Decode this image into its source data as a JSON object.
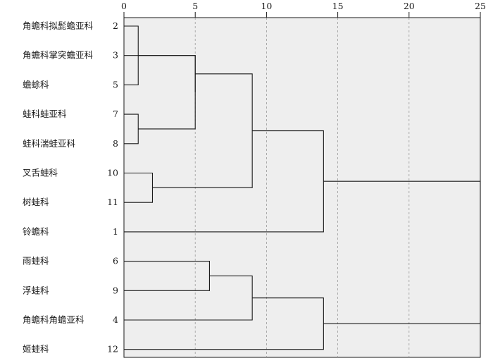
{
  "chart_data": {
    "type": "dendrogram",
    "title": "",
    "xlabel": "",
    "ylabel": "",
    "x_axis": {
      "min": 0,
      "max": 25,
      "ticks": [
        0,
        5,
        10,
        15,
        20,
        25
      ],
      "grid": "dashed vertical"
    },
    "colors": {
      "plot_background": "#eeeeee",
      "lines": "#1a1a1a",
      "grid": "#9a9a9a"
    },
    "leaves": [
      {
        "label": "角蟾科拟髭蟾亚科",
        "id": "2"
      },
      {
        "label": "角蟾科掌突蟾亚科",
        "id": "3"
      },
      {
        "label": "蟾蜍科",
        "id": "5"
      },
      {
        "label": "蛙科蛙亚科",
        "id": "7"
      },
      {
        "label": "蛙科湍蛙亚科",
        "id": "8"
      },
      {
        "label": "叉舌蛙科",
        "id": "10"
      },
      {
        "label": "树蛙科",
        "id": "11"
      },
      {
        "label": "铃蟾科",
        "id": "1"
      },
      {
        "label": "雨蛙科",
        "id": "6"
      },
      {
        "label": "浮蛙科",
        "id": "9"
      },
      {
        "label": "角蟾科角蟾亚科",
        "id": "4"
      },
      {
        "label": "姬蛙科",
        "id": "12"
      }
    ],
    "merges": [
      {
        "name": "A",
        "left": "L0",
        "right": "L2",
        "distance": 1
      },
      {
        "name": "B",
        "left": "L3",
        "right": "L4",
        "distance": 1
      },
      {
        "name": "C",
        "left": "L5",
        "right": "L6",
        "distance": 2
      },
      {
        "name": "D",
        "left": "L1",
        "right": "B",
        "distance": 5
      },
      {
        "name": "E",
        "left": "A",
        "right": "D",
        "distance": 5
      },
      {
        "name": "F",
        "left": "L8",
        "right": "L9",
        "distance": 6
      },
      {
        "name": "G",
        "left": "E",
        "right": "C",
        "distance": 9
      },
      {
        "name": "H",
        "left": "F",
        "right": "L10",
        "distance": 9
      },
      {
        "name": "I",
        "left": "G",
        "right": "L7",
        "distance": 14
      },
      {
        "name": "J",
        "left": "H",
        "right": "L11",
        "distance": 14
      },
      {
        "name": "K",
        "left": "I",
        "right": "J",
        "distance": 25
      }
    ]
  }
}
